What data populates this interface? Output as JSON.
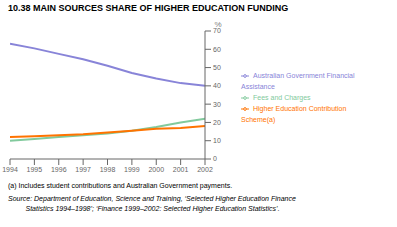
{
  "chart_data": {
    "type": "line",
    "title": "10.38   MAIN SOURCES SHARE OF HIGHER EDUCATION FUNDING",
    "x": [
      1994,
      1995,
      1996,
      1997,
      1998,
      1999,
      2000,
      2001,
      2002
    ],
    "series": [
      {
        "name": "Australian Government Financial Assistance",
        "color": "#8884d8",
        "values": [
          63,
          60.5,
          57.5,
          54.5,
          51,
          47,
          44,
          41.5,
          40
        ]
      },
      {
        "name": "Fees and Charges",
        "color": "#82ca9d",
        "values": [
          10,
          11,
          12,
          13,
          14,
          15.5,
          17.5,
          20,
          22
        ]
      },
      {
        "name": "Higher Education Contribution Scheme(a)",
        "color": "#ff7300",
        "values": [
          12,
          12.5,
          13,
          13.5,
          14.5,
          15.5,
          16.5,
          17,
          18
        ]
      }
    ],
    "xlim": [
      1994,
      2002
    ],
    "xticks": [
      1994,
      1995,
      1996,
      1997,
      1998,
      1999,
      2000,
      2001,
      2002
    ],
    "ylim": [
      0,
      70
    ],
    "yticks": [
      0,
      10,
      20,
      30,
      40,
      50,
      60,
      70
    ],
    "ylabel": "%",
    "legend": "right",
    "grid": false,
    "annotations": [
      "(a) Includes student contributions and Australian Government payments.",
      "Source: Department of Education, Science and Training, ‘Selected Higher Education Finance",
      "         Statistics 1994–1998’; ‘Finance 1999–2002: Selected Higher Education Statistics’."
    ]
  }
}
